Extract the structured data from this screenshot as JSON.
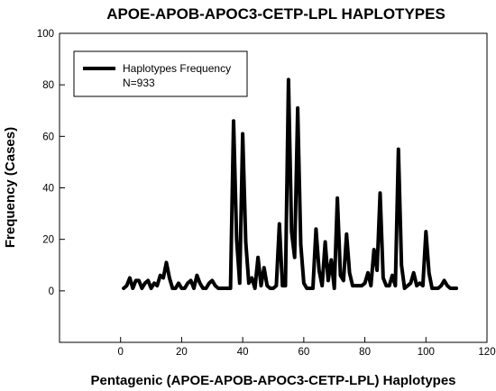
{
  "chart_data": {
    "type": "line",
    "title": "APOE-APOB-APOC3-CETP-LPL HAPLOTYPES",
    "xlabel": "Pentagenic (APOE-APOB-APOC3-CETP-LPL) Haplotypes",
    "ylabel": "Frequency (Cases)",
    "xlim": [
      -20,
      120
    ],
    "ylim": [
      -20,
      100
    ],
    "x_ticks": [
      0,
      20,
      40,
      60,
      80,
      100,
      120
    ],
    "y_ticks": [
      0,
      20,
      40,
      60,
      80,
      100
    ],
    "grid": false,
    "legend_position": "top-left",
    "legend": {
      "entries": [
        "Haplotypes Frequency"
      ],
      "note": "N=933"
    },
    "series": [
      {
        "name": "Haplotypes Frequency",
        "color": "#000000",
        "x": [
          1,
          2,
          3,
          4,
          5,
          6,
          7,
          8,
          9,
          10,
          11,
          12,
          13,
          14,
          15,
          16,
          17,
          18,
          19,
          20,
          21,
          22,
          23,
          24,
          25,
          26,
          27,
          28,
          29,
          30,
          31,
          32,
          33,
          34,
          35,
          36,
          37,
          38,
          39,
          40,
          41,
          42,
          43,
          44,
          45,
          46,
          47,
          48,
          49,
          50,
          51,
          52,
          53,
          54,
          55,
          56,
          57,
          58,
          59,
          60,
          61,
          62,
          63,
          64,
          65,
          66,
          67,
          68,
          69,
          70,
          71,
          72,
          73,
          74,
          75,
          76,
          77,
          78,
          79,
          80,
          81,
          82,
          83,
          84,
          85,
          86,
          87,
          88,
          89,
          90,
          91,
          92,
          93,
          94,
          95,
          96,
          97,
          98,
          99,
          100,
          101,
          102,
          103,
          104,
          105,
          106,
          107,
          108,
          109,
          110
        ],
        "y": [
          1,
          2,
          5,
          1,
          4,
          4,
          1,
          3,
          4,
          1,
          3,
          2,
          6,
          5,
          11,
          5,
          1,
          1,
          3,
          1,
          1,
          3,
          4,
          1,
          6,
          3,
          1,
          1,
          3,
          4,
          2,
          1,
          1,
          1,
          1,
          1,
          66,
          20,
          3,
          61,
          19,
          3,
          5,
          1,
          13,
          2,
          9,
          2,
          1,
          1,
          2,
          26,
          2,
          2,
          82,
          23,
          13,
          71,
          18,
          3,
          1,
          1,
          1,
          24,
          8,
          2,
          19,
          4,
          12,
          1,
          36,
          6,
          4,
          22,
          7,
          2,
          2,
          2,
          2,
          3,
          7,
          2,
          16,
          8,
          38,
          5,
          2,
          2,
          6,
          2,
          55,
          10,
          1,
          2,
          3,
          7,
          2,
          3,
          2,
          23,
          7,
          1,
          1,
          1,
          2,
          4,
          2,
          1,
          1,
          1
        ]
      }
    ]
  }
}
